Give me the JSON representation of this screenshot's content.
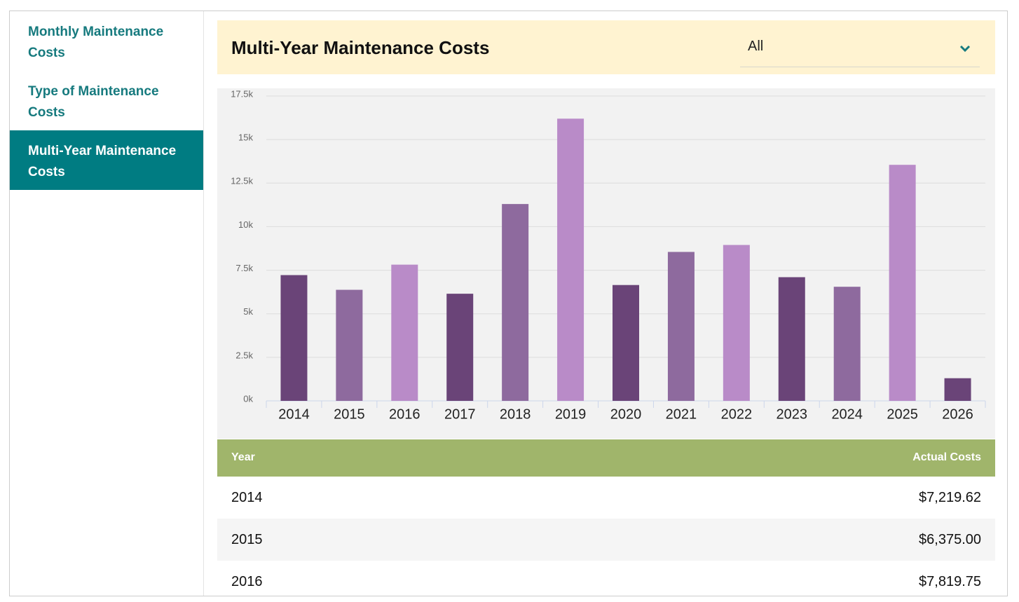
{
  "nav": {
    "items": [
      "Monthly Maintenance Costs",
      "Type of Maintenance Costs",
      "Multi-Year Maintenance Costs"
    ],
    "active": 2
  },
  "header": {
    "title": "Multi-Year Maintenance Costs",
    "filter": "All"
  },
  "chart_data": {
    "type": "bar",
    "categories": [
      "2014",
      "2015",
      "2016",
      "2017",
      "2018",
      "2019",
      "2020",
      "2021",
      "2022",
      "2023",
      "2024",
      "2025",
      "2026"
    ],
    "values": [
      7219.62,
      6375,
      7819.75,
      6150,
      11300,
      16200,
      6650,
      8550,
      8950,
      7100,
      6550,
      13550,
      1300
    ],
    "colors": [
      "#6a4478",
      "#8e6a9e",
      "#b98bc8",
      "#6a4478",
      "#8e6a9e",
      "#b98bc8",
      "#6a4478",
      "#8e6a9e",
      "#b98bc8",
      "#6a4478",
      "#8e6a9e",
      "#b98bc8",
      "#6a4478"
    ],
    "ylim": [
      0,
      17500
    ],
    "yticks": [
      {
        "value": 0,
        "label": "0k"
      },
      {
        "value": 2500,
        "label": "2.5k"
      },
      {
        "value": 5000,
        "label": "5k"
      },
      {
        "value": 7500,
        "label": "7.5k"
      },
      {
        "value": 10000,
        "label": "10k"
      },
      {
        "value": 12500,
        "label": "12.5k"
      },
      {
        "value": 15000,
        "label": "15k"
      },
      {
        "value": 17500,
        "label": "17.5k"
      }
    ],
    "grid": true
  },
  "table": {
    "headers": [
      "Year",
      "Actual Costs"
    ],
    "rows": [
      [
        "2014",
        "$7,219.62"
      ],
      [
        "2015",
        "$6,375.00"
      ],
      [
        "2016",
        "$7,819.75"
      ]
    ]
  }
}
